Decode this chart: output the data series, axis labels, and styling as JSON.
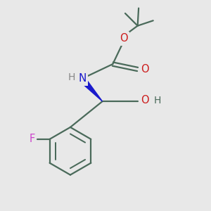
{
  "background_color": "#e8e8e8",
  "bond_color": "#4a6a5a",
  "N_color": "#1a1acc",
  "O_color": "#cc1a1a",
  "F_color": "#cc44cc",
  "wedge_color": "#1a1acc",
  "fig_size": [
    3.0,
    3.0
  ],
  "dpi": 100,
  "xlim": [
    0,
    10
  ],
  "ylim": [
    0,
    10
  ]
}
